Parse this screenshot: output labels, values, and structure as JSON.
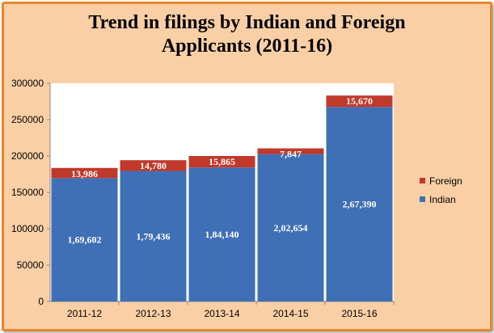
{
  "chart_data": {
    "type": "bar",
    "stacked": true,
    "title_lines": [
      "Trend in filings by Indian and Foreign",
      "Applicants (2011-16)"
    ],
    "categories": [
      "2011-12",
      "2012-13",
      "2013-14",
      "2014-15",
      "2015-16"
    ],
    "series": [
      {
        "name": "Indian",
        "color": "#3f6fb5",
        "values": [
          169602,
          179436,
          184140,
          202654,
          267390
        ],
        "labels": [
          "1,69,602",
          "1,79,436",
          "1,84,140",
          "2,02,654",
          "2,67,390"
        ]
      },
      {
        "name": "Foreign",
        "color": "#c0392b",
        "values": [
          13986,
          14780,
          15865,
          7847,
          15670
        ],
        "labels": [
          "13,986",
          "14,780",
          "15,865",
          "7,847",
          "15,670"
        ]
      }
    ],
    "ylim": [
      0,
      300000
    ],
    "yticks": [
      0,
      50000,
      100000,
      150000,
      200000,
      250000,
      300000
    ],
    "ytick_labels": [
      "0",
      "50000",
      "100000",
      "150000",
      "200000",
      "250000",
      "300000"
    ],
    "legend_position": "right",
    "legend_order": [
      "Foreign",
      "Indian"
    ],
    "grid": false
  }
}
